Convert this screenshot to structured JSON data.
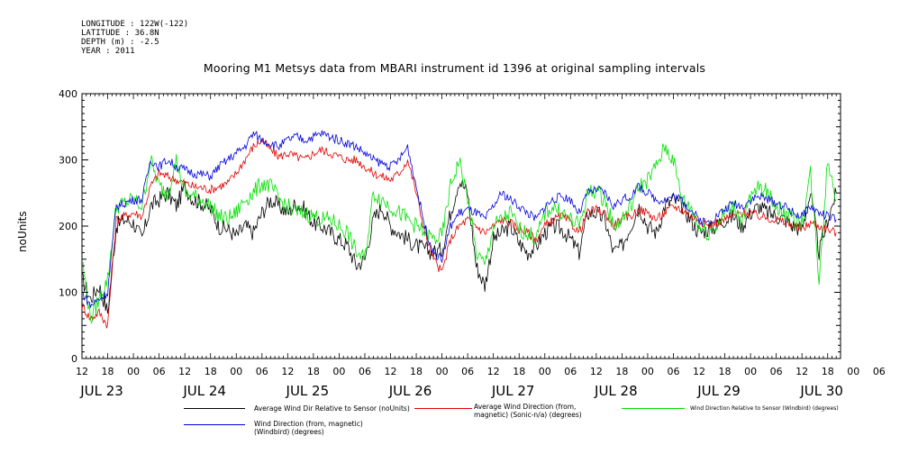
{
  "meta": {
    "longitude": "LONGITUDE : 122W(-122)",
    "latitude": "LATITUDE : 36.8N",
    "depth": "DEPTH (m) : -2.5",
    "year": "YEAR : 2011"
  },
  "chart_data": {
    "type": "line",
    "title": "Mooring M1 Metsys data from MBARI instrument id 1396 at original sampling intervals",
    "ylabel": "noUnits",
    "xlabel": "",
    "ylim": [
      0,
      400
    ],
    "yticks": [
      "0",
      "100",
      "200",
      "300",
      "400"
    ],
    "xlim_hours": [
      12,
      189
    ],
    "hour_tick_labels": [
      "12",
      "18",
      "00",
      "06",
      "12",
      "18",
      "00",
      "06",
      "12",
      "18",
      "00",
      "06",
      "12",
      "18",
      "00",
      "06",
      "12",
      "18",
      "00",
      "06",
      "12",
      "18",
      "00",
      "06",
      "12",
      "18",
      "00",
      "06",
      "12",
      "18",
      "00",
      "06"
    ],
    "day_labels": [
      "JUL 23",
      "JUL 24",
      "JUL 25",
      "JUL 26",
      "JUL 27",
      "JUL 28",
      "JUL 29",
      "JUL 30"
    ],
    "grid": false,
    "legend_position": "bottom",
    "x_units": "hours since 00:00 JUL 23 2011",
    "series": [
      {
        "name": "Average Wind Dir Relative to Sensor (noUnits)",
        "color": "#000000",
        "x": [
          12,
          14,
          16,
          18,
          20,
          22,
          24,
          26,
          28,
          30,
          32,
          34,
          36,
          38,
          40,
          42,
          44,
          46,
          48,
          50,
          52,
          54,
          56,
          58,
          60,
          62,
          64,
          66,
          68,
          70,
          72,
          74,
          76,
          78,
          80,
          82,
          84,
          86,
          88,
          90,
          92,
          94,
          96,
          98,
          100,
          102,
          104,
          106,
          108,
          110,
          112,
          114,
          116,
          118,
          120,
          122,
          124,
          126,
          128,
          130,
          132,
          134,
          136,
          138,
          140,
          142,
          144,
          146,
          148,
          150,
          152,
          154,
          156,
          158,
          160,
          162,
          164,
          166,
          168,
          170,
          172,
          174,
          176,
          178,
          180,
          182,
          184,
          186,
          188
        ],
        "values": [
          120,
          90,
          110,
          70,
          200,
          210,
          205,
          180,
          230,
          240,
          250,
          230,
          260,
          240,
          235,
          225,
          200,
          195,
          185,
          200,
          190,
          220,
          240,
          230,
          220,
          235,
          225,
          205,
          200,
          190,
          180,
          170,
          140,
          150,
          210,
          230,
          200,
          190,
          180,
          170,
          165,
          160,
          165,
          220,
          270,
          250,
          140,
          110,
          180,
          190,
          200,
          175,
          160,
          170,
          190,
          200,
          195,
          180,
          160,
          220,
          220,
          210,
          160,
          170,
          200,
          230,
          200,
          190,
          230,
          240,
          230,
          210,
          190,
          195,
          200,
          210,
          215,
          200,
          220,
          230,
          220,
          215,
          210,
          200,
          195,
          250,
          160,
          210,
          250
        ]
      },
      {
        "name": "Average Wind Direction (from, magnetic) (Sonic-n/a) (degrees)",
        "color": "#e00000",
        "x": [
          12,
          14,
          16,
          18,
          20,
          22,
          24,
          26,
          28,
          30,
          32,
          34,
          36,
          38,
          40,
          42,
          44,
          46,
          48,
          50,
          52,
          54,
          56,
          58,
          60,
          62,
          64,
          66,
          68,
          70,
          72,
          74,
          76,
          78,
          80,
          82,
          84,
          86,
          88,
          90,
          92,
          94,
          96,
          98,
          100,
          102,
          104,
          106,
          108,
          110,
          112,
          114,
          116,
          118,
          120,
          122,
          124,
          126,
          128,
          130,
          132,
          134,
          136,
          138,
          140,
          142,
          144,
          146,
          148,
          150,
          152,
          154,
          156,
          158,
          160,
          162,
          164,
          166,
          168,
          170,
          172,
          174,
          176,
          178,
          180,
          182,
          184,
          186,
          188
        ],
        "values": [
          80,
          60,
          70,
          50,
          210,
          215,
          220,
          215,
          260,
          280,
          275,
          270,
          265,
          260,
          258,
          255,
          260,
          265,
          280,
          300,
          320,
          330,
          315,
          305,
          310,
          305,
          300,
          310,
          315,
          310,
          305,
          300,
          300,
          290,
          280,
          275,
          270,
          280,
          300,
          250,
          190,
          150,
          130,
          180,
          200,
          210,
          200,
          190,
          200,
          210,
          205,
          195,
          190,
          180,
          200,
          210,
          215,
          205,
          190,
          220,
          225,
          220,
          200,
          210,
          215,
          225,
          220,
          210,
          220,
          230,
          225,
          215,
          210,
          200,
          205,
          210,
          215,
          220,
          220,
          215,
          212,
          210,
          205,
          200,
          195,
          205,
          200,
          195,
          190
        ]
      },
      {
        "name": "Wind Direction Relative to Sensor (Windbird) (degrees)",
        "color": "#00e000",
        "x": [
          12,
          14,
          16,
          18,
          20,
          22,
          24,
          26,
          28,
          30,
          32,
          34,
          36,
          38,
          40,
          42,
          44,
          46,
          48,
          50,
          52,
          54,
          56,
          58,
          60,
          62,
          64,
          66,
          68,
          70,
          72,
          74,
          76,
          78,
          80,
          82,
          84,
          86,
          88,
          90,
          92,
          94,
          96,
          98,
          100,
          102,
          104,
          106,
          108,
          110,
          112,
          114,
          116,
          118,
          120,
          122,
          124,
          126,
          128,
          130,
          132,
          134,
          136,
          138,
          140,
          142,
          144,
          146,
          148,
          150,
          152,
          154,
          156,
          158,
          160,
          162,
          164,
          166,
          168,
          170,
          172,
          174,
          176,
          178,
          180,
          182,
          184,
          186,
          188
        ],
        "values": [
          150,
          60,
          90,
          120,
          230,
          235,
          240,
          230,
          300,
          260,
          250,
          300,
          250,
          245,
          240,
          230,
          215,
          210,
          220,
          240,
          250,
          265,
          260,
          240,
          230,
          220,
          220,
          215,
          210,
          210,
          200,
          190,
          160,
          150,
          250,
          240,
          230,
          220,
          210,
          200,
          190,
          180,
          185,
          260,
          300,
          240,
          160,
          140,
          200,
          210,
          220,
          195,
          190,
          180,
          220,
          230,
          220,
          210,
          200,
          250,
          255,
          240,
          200,
          210,
          230,
          260,
          270,
          290,
          320,
          300,
          240,
          230,
          200,
          190,
          200,
          220,
          230,
          210,
          240,
          260,
          250,
          230,
          220,
          210,
          205,
          280,
          120,
          300,
          240
        ]
      },
      {
        "name": "Wind Direction (from, magnetic) (Windbird) (degrees)",
        "color": "#0000e0",
        "x": [
          12,
          14,
          16,
          18,
          20,
          22,
          24,
          26,
          28,
          30,
          32,
          34,
          36,
          38,
          40,
          42,
          44,
          46,
          48,
          50,
          52,
          54,
          56,
          58,
          60,
          62,
          64,
          66,
          68,
          70,
          72,
          74,
          76,
          78,
          80,
          82,
          84,
          86,
          88,
          90,
          92,
          94,
          96,
          98,
          100,
          102,
          104,
          106,
          108,
          110,
          112,
          114,
          116,
          118,
          120,
          122,
          124,
          126,
          128,
          130,
          132,
          134,
          136,
          138,
          140,
          142,
          144,
          146,
          148,
          150,
          152,
          154,
          156,
          158,
          160,
          162,
          164,
          166,
          168,
          170,
          172,
          174,
          176,
          178,
          180,
          182,
          184,
          186,
          188
        ],
        "values": [
          100,
          80,
          90,
          100,
          230,
          235,
          240,
          240,
          300,
          290,
          300,
          290,
          285,
          280,
          278,
          275,
          290,
          300,
          310,
          320,
          340,
          330,
          325,
          320,
          330,
          335,
          330,
          335,
          340,
          335,
          330,
          325,
          320,
          310,
          300,
          295,
          290,
          300,
          320,
          260,
          200,
          160,
          150,
          200,
          220,
          225,
          220,
          210,
          230,
          250,
          240,
          230,
          220,
          210,
          230,
          240,
          245,
          240,
          220,
          250,
          255,
          250,
          230,
          240,
          245,
          260,
          250,
          240,
          240,
          245,
          240,
          225,
          210,
          205,
          215,
          225,
          235,
          230,
          240,
          245,
          240,
          235,
          230,
          220,
          215,
          230,
          220,
          215,
          210
        ]
      }
    ]
  }
}
